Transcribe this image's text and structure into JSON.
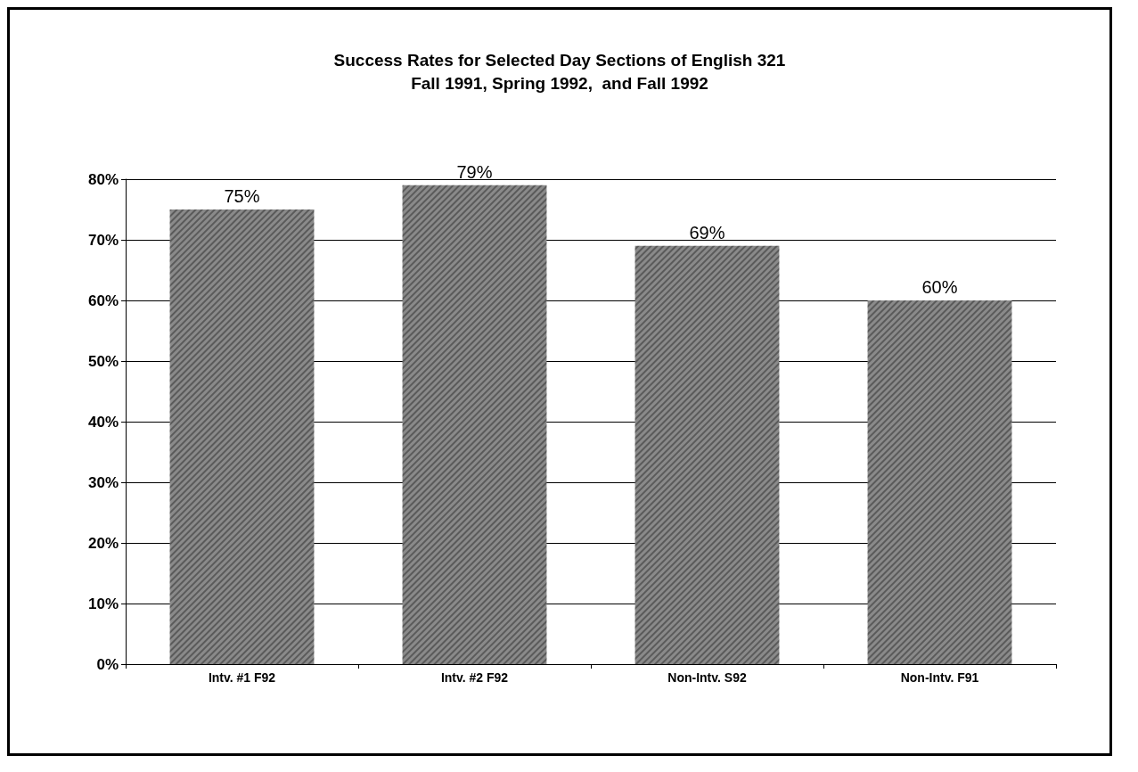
{
  "chart_data": {
    "type": "bar",
    "title": "Success Rates for Selected Day Sections of English 321\nFall 1991, Spring 1992,  and Fall 1992",
    "categories": [
      "Intv. #1 F92",
      "Intv. #2 F92",
      "Non-Intv. S92",
      "Non-Intv. F91"
    ],
    "values": [
      75,
      79,
      69,
      60
    ],
    "value_labels": [
      "75%",
      "79%",
      "69%",
      "60%"
    ],
    "color": "#8a8a8a",
    "ylim": [
      0,
      80
    ],
    "yticks": [
      {
        "value": 0,
        "label": "0%"
      },
      {
        "value": 10,
        "label": "10%"
      },
      {
        "value": 20,
        "label": "20%"
      },
      {
        "value": 30,
        "label": "30%"
      },
      {
        "value": 40,
        "label": "40%"
      },
      {
        "value": 50,
        "label": "50%"
      },
      {
        "value": 60,
        "label": "60%"
      },
      {
        "value": 70,
        "label": "70%"
      },
      {
        "value": 80,
        "label": "80%"
      }
    ],
    "grid": "y"
  }
}
